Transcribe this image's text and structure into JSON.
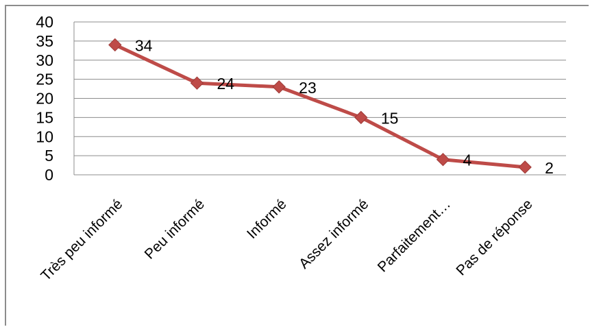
{
  "chart_data": {
    "type": "line",
    "categories": [
      "Très peu informé",
      "Peu informé",
      "Informé",
      "Assez informé",
      "Parfaitement…",
      "Pas de réponse"
    ],
    "series": [
      {
        "values": [
          34,
          24,
          23,
          15,
          4,
          2
        ],
        "color": "#BE4B48",
        "marker": "diamond"
      }
    ],
    "data_labels": [
      "34",
      "24",
      "23",
      "15",
      "4",
      "2"
    ],
    "y_ticks": [
      "0",
      "5",
      "10",
      "15",
      "20",
      "25",
      "30",
      "35",
      "40"
    ],
    "ylim": [
      0,
      40
    ],
    "y_step": 5,
    "grid": true,
    "legend": "none",
    "title": "",
    "xlabel": "",
    "ylabel": ""
  }
}
